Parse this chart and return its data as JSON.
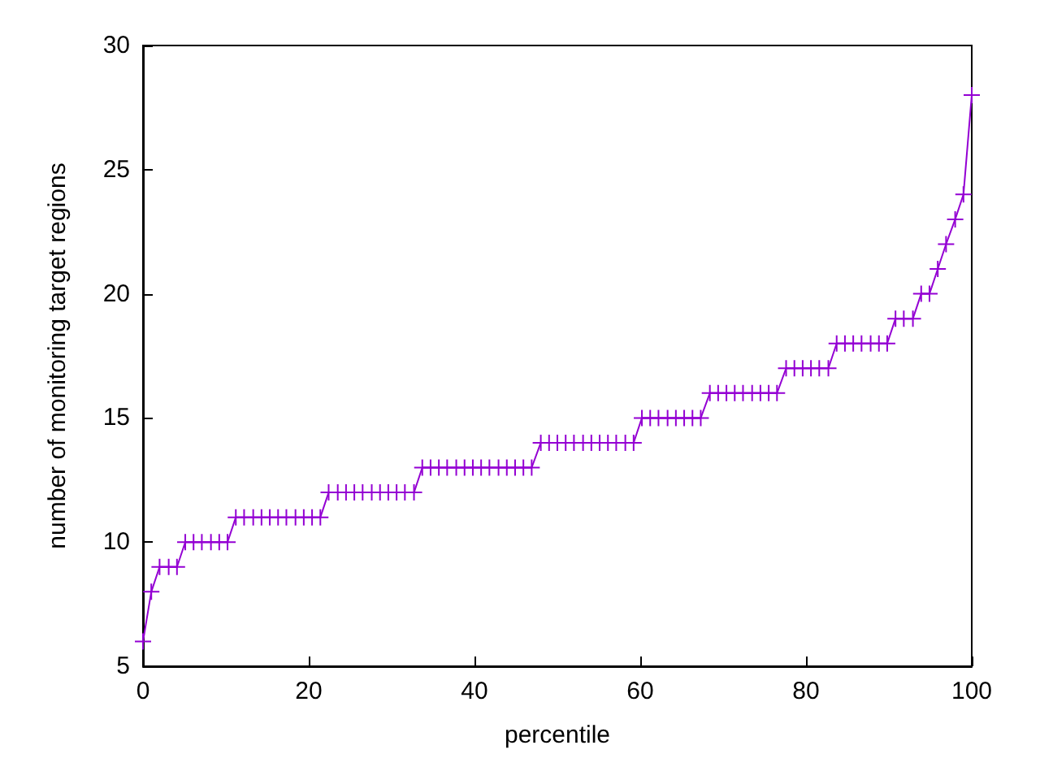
{
  "chart_data": {
    "type": "line",
    "xlabel": "percentile",
    "ylabel": "number of monitoring target regions",
    "x": [
      0,
      1.0,
      2.0,
      3.1,
      4.1,
      5.1,
      6.1,
      7.1,
      8.2,
      9.2,
      10.2,
      11.2,
      12.2,
      13.3,
      14.3,
      15.3,
      16.3,
      17.3,
      18.4,
      19.4,
      20.4,
      21.4,
      22.4,
      23.5,
      24.5,
      25.5,
      26.5,
      27.6,
      28.6,
      29.6,
      30.6,
      31.6,
      32.7,
      33.7,
      34.7,
      35.7,
      36.7,
      37.8,
      38.8,
      39.8,
      40.8,
      41.8,
      42.9,
      43.9,
      44.9,
      45.9,
      46.9,
      48.0,
      49.0,
      50.0,
      51.0,
      52.0,
      53.1,
      54.1,
      55.1,
      56.1,
      57.1,
      58.2,
      59.2,
      60.2,
      61.2,
      62.2,
      63.3,
      64.3,
      65.3,
      66.3,
      67.3,
      68.4,
      69.4,
      70.4,
      71.4,
      72.4,
      73.5,
      74.5,
      75.5,
      76.5,
      77.6,
      78.6,
      79.6,
      80.6,
      81.6,
      82.7,
      83.7,
      84.7,
      85.7,
      86.7,
      87.8,
      88.8,
      89.8,
      90.8,
      91.8,
      92.9,
      93.9,
      94.9,
      95.9,
      96.9,
      98.0,
      99.0,
      100
    ],
    "series": [
      {
        "color": "#9400d3",
        "values": [
          6,
          8,
          9,
          9,
          9,
          10,
          10,
          10,
          10,
          10,
          10,
          11,
          11,
          11,
          11,
          11,
          11,
          11,
          11,
          11,
          11,
          11,
          12,
          12,
          12,
          12,
          12,
          12,
          12,
          12,
          12,
          12,
          12,
          13,
          13,
          13,
          13,
          13,
          13,
          13,
          13,
          13,
          13,
          13,
          13,
          13,
          13,
          14,
          14,
          14,
          14,
          14,
          14,
          14,
          14,
          14,
          14,
          14,
          14,
          15,
          15,
          15,
          15,
          15,
          15,
          15,
          15,
          16,
          16,
          16,
          16,
          16,
          16,
          16,
          16,
          16,
          17,
          17,
          17,
          17,
          17,
          17,
          18,
          18,
          18,
          18,
          18,
          18,
          18,
          19,
          19,
          19,
          20,
          20,
          21,
          22,
          23,
          24,
          28
        ]
      }
    ],
    "xlim": [
      0,
      100
    ],
    "xticks": [
      0,
      20,
      40,
      60,
      80,
      100
    ],
    "ylim": [
      5,
      30
    ],
    "yticks": [
      5,
      10,
      15,
      20,
      25,
      30
    ],
    "grid": false,
    "marker": "cross",
    "line_style": "solid"
  }
}
